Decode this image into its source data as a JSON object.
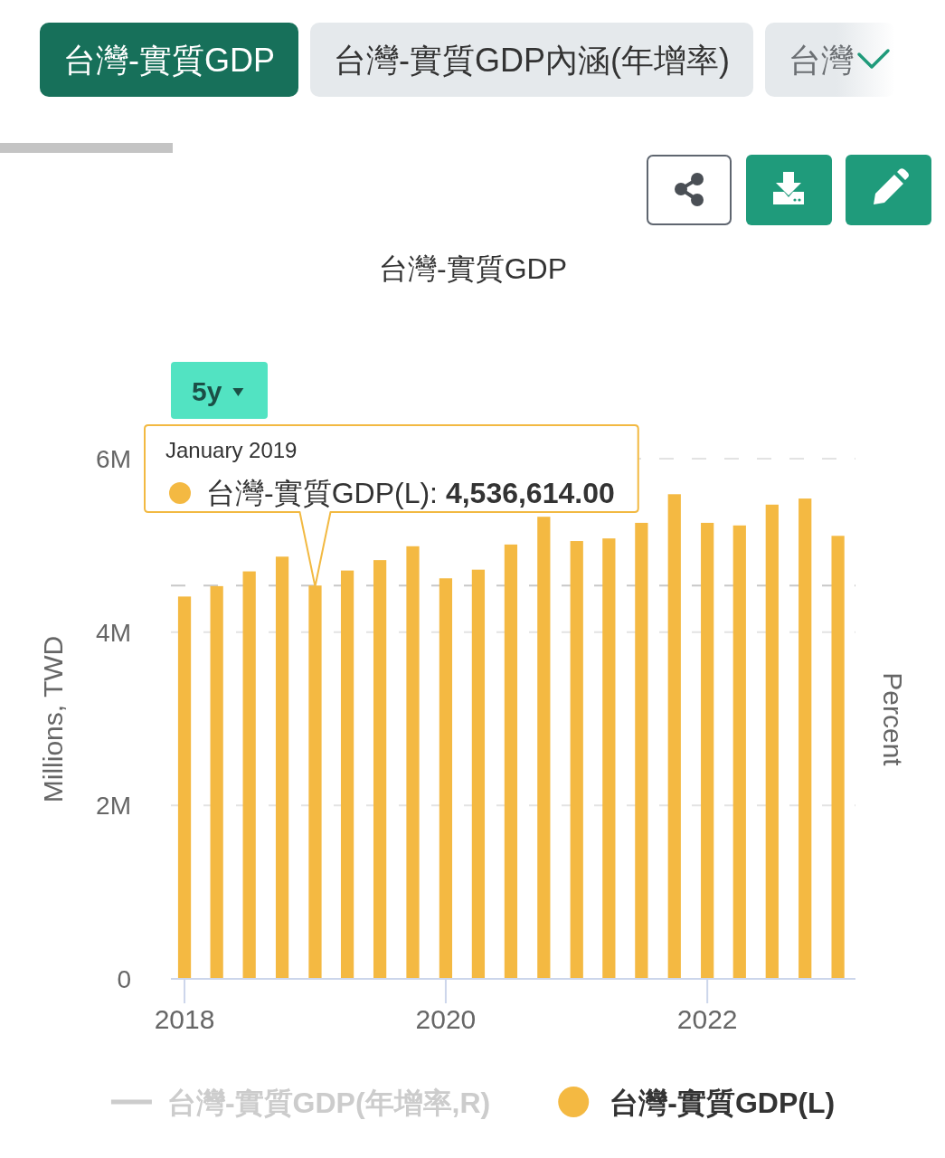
{
  "chart_data": {
    "type": "bar",
    "title": "台灣-實質GDP",
    "annotations": [
      "台灣-實質GDP",
      "台灣-實質GDP內涵(年增率)",
      "台灣",
      "5y",
      {
        "text": "January 2019\n台灣-實質GDP(L): 4,536,614.00",
        "x": "2019-01",
        "y": 4536614
      }
    ],
    "x": [
      "2018-01",
      "2018-04",
      "2018-07",
      "2018-10",
      "2019-01",
      "2019-04",
      "2019-07",
      "2019-10",
      "2020-01",
      "2020-04",
      "2020-07",
      "2020-10",
      "2021-01",
      "2021-04",
      "2021-07",
      "2021-10",
      "2022-01",
      "2022-04",
      "2022-07",
      "2022-10",
      "2023-01"
    ],
    "series": [
      {
        "name": "台灣-實質GDP(年增率,R)",
        "color": "#cccccc",
        "type": "line",
        "values": [
          null,
          null,
          null,
          null,
          null,
          null,
          null,
          null,
          null,
          null,
          null,
          null,
          null,
          null,
          null,
          null,
          null,
          null,
          null,
          null,
          null
        ]
      },
      {
        "name": "台灣-實質GDP(L)",
        "color": "#f4b942",
        "values": [
          4410000,
          4530000,
          4700000,
          4870000,
          4536614,
          4710000,
          4830000,
          4990000,
          4620000,
          4720000,
          5010000,
          5330000,
          5050000,
          5080000,
          5260000,
          5590000,
          5260000,
          5230000,
          5470000,
          5540000,
          5110000
        ]
      }
    ],
    "xlim": [
      "2017-11-24",
      "2023-02-19"
    ],
    "xticks": [
      "2018",
      "2020",
      "2022"
    ],
    "ylim": [
      0,
      6000000
    ],
    "yticks": [
      0,
      {
        "value": 2000000,
        "label": "2M"
      },
      {
        "value": 4000000,
        "label": "4M"
      },
      {
        "value": 6000000,
        "label": "6M"
      }
    ],
    "ylabel": "Millions, TWD",
    "y2label": "Percent",
    "ref_lines": [
      {
        "axis": "y",
        "value": 4536614,
        "color": "#c8c8c8",
        "line_style": "dashed"
      }
    ],
    "grid": "y",
    "legend": "bottom"
  }
}
